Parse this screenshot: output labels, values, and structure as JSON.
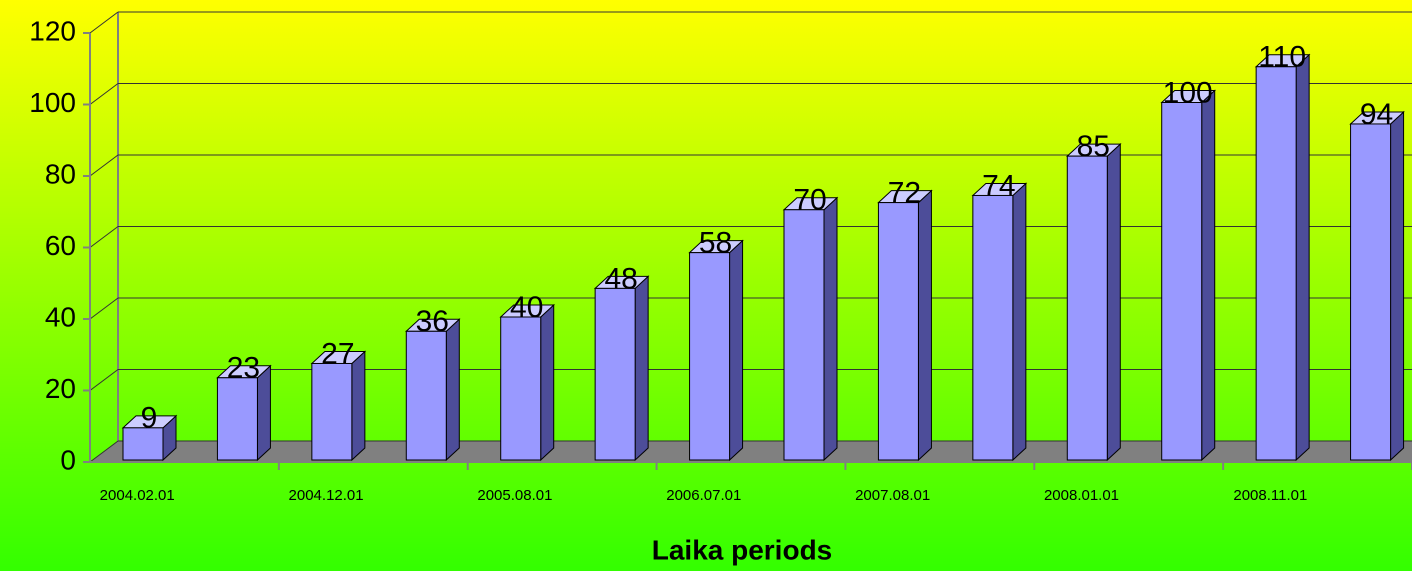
{
  "chart_data": {
    "type": "bar3d",
    "xlabel": "Laika periods",
    "categories": [
      "2004.02.01",
      null,
      "2004.12.01",
      null,
      "2005.08.01",
      null,
      "2006.07.01",
      null,
      "2007.08.01",
      null,
      "2008.01.01",
      null,
      "2008.11.01",
      null
    ],
    "values": [
      9,
      23,
      27,
      36,
      40,
      48,
      58,
      70,
      72,
      74,
      85,
      100,
      110,
      94
    ],
    "color": "#9999ff",
    "ylim": [
      0,
      120
    ],
    "yticks": [
      0,
      20,
      40,
      60,
      80,
      100,
      120
    ],
    "grid": true
  }
}
